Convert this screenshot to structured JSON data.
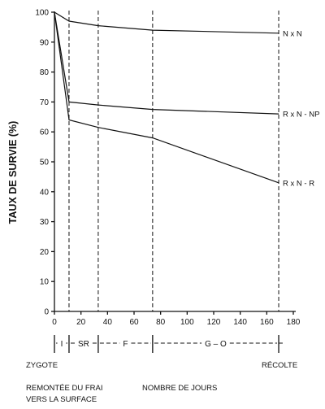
{
  "chart_data": {
    "type": "line",
    "ylabel": "TAUX DE SURVIE (%)",
    "xlabel": "NOMBRE DE JOURS",
    "xlim": [
      0,
      180
    ],
    "ylim": [
      0,
      100
    ],
    "x_ticks": [
      0,
      20,
      40,
      60,
      80,
      100,
      120,
      140,
      160,
      180
    ],
    "y_ticks": [
      0,
      10,
      20,
      30,
      40,
      50,
      60,
      70,
      80,
      90,
      100
    ],
    "stage_boundaries": [
      11,
      33,
      74,
      169
    ],
    "stages": [
      {
        "label": "I",
        "from": 0,
        "to": 11
      },
      {
        "label": "SR",
        "from": 11,
        "to": 33
      },
      {
        "label": "F",
        "from": 33,
        "to": 74
      },
      {
        "label": "G – O",
        "from": 74,
        "to": 169
      }
    ],
    "bottom_labels": {
      "zygote": "ZYGOTE",
      "recolte": "RÉCOLTE",
      "remontee_line1": "REMONTÉE DU FRAI",
      "remontee_line2": "VERS LA SURFACE"
    },
    "series": [
      {
        "name": "N x N",
        "points": [
          [
            0,
            100
          ],
          [
            11,
            97
          ],
          [
            33,
            95.5
          ],
          [
            74,
            94
          ],
          [
            169,
            93
          ]
        ]
      },
      {
        "name": "R x N - NP",
        "points": [
          [
            0,
            100
          ],
          [
            11,
            70
          ],
          [
            33,
            69
          ],
          [
            74,
            67.5
          ],
          [
            169,
            66
          ]
        ]
      },
      {
        "name": "R x N - R",
        "points": [
          [
            0,
            100
          ],
          [
            11,
            64
          ],
          [
            33,
            61.5
          ],
          [
            74,
            58
          ],
          [
            169,
            43
          ]
        ]
      }
    ]
  }
}
